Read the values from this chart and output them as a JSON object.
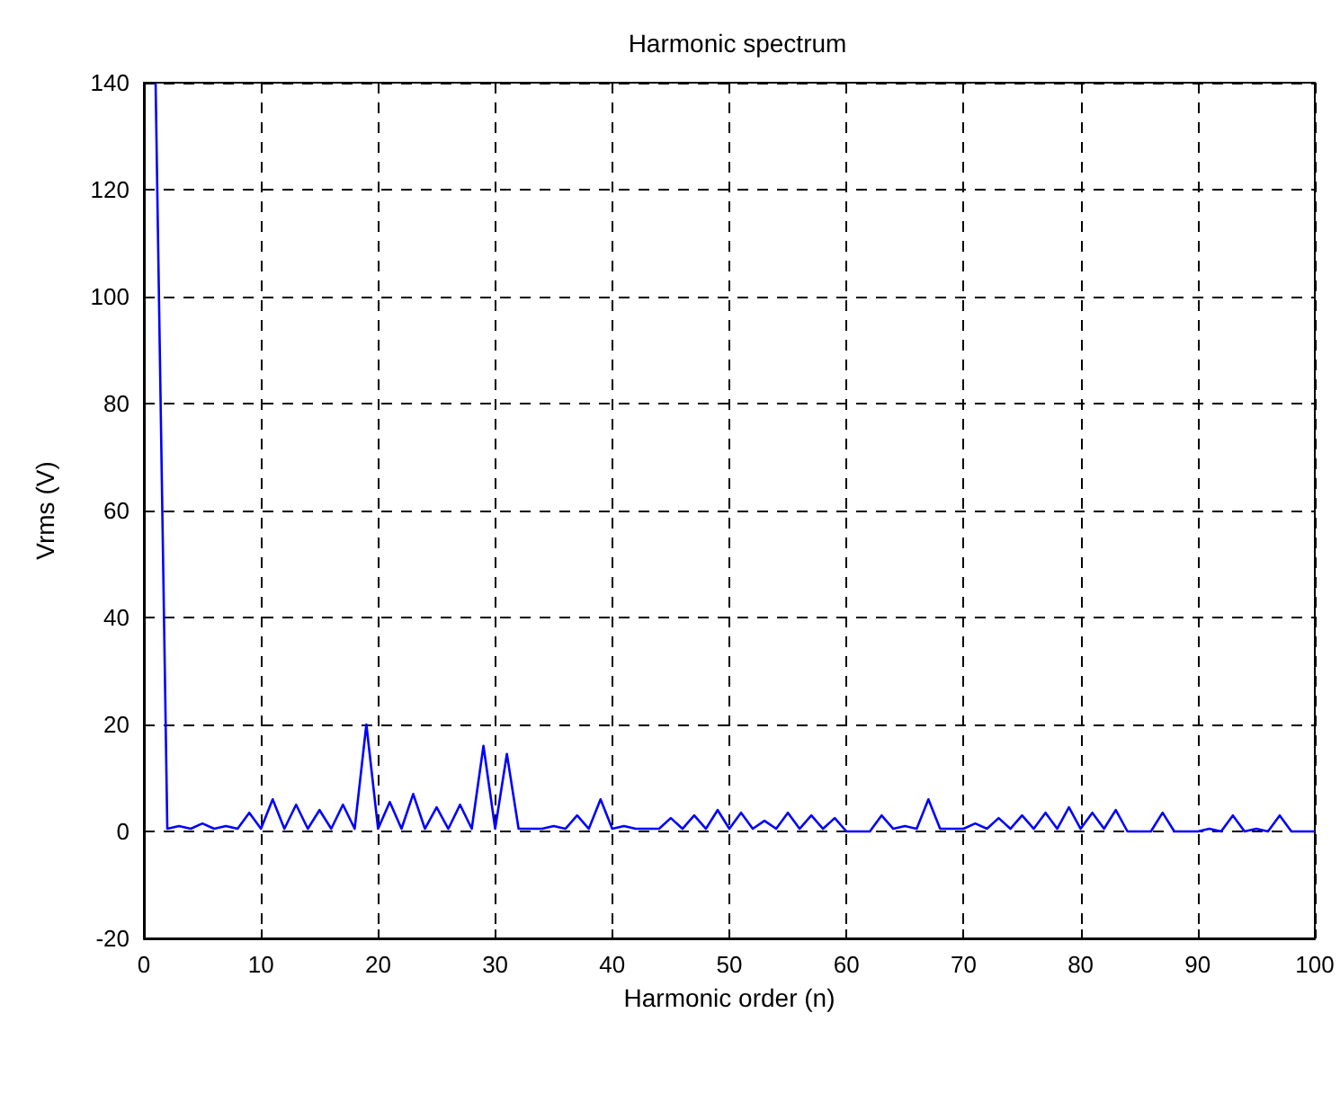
{
  "chart_data": {
    "type": "line",
    "title": "Harmonic spectrum",
    "xlabel": "Harmonic order (n)",
    "ylabel": "Vrms (V)",
    "x": [
      1,
      2,
      3,
      4,
      5,
      6,
      7,
      8,
      9,
      10,
      11,
      12,
      13,
      14,
      15,
      16,
      17,
      18,
      19,
      20,
      21,
      22,
      23,
      24,
      25,
      26,
      27,
      28,
      29,
      30,
      31,
      32,
      33,
      34,
      35,
      36,
      37,
      38,
      39,
      40,
      41,
      42,
      43,
      44,
      45,
      46,
      47,
      48,
      49,
      50,
      51,
      52,
      53,
      54,
      55,
      56,
      57,
      58,
      59,
      60,
      61,
      62,
      63,
      64,
      65,
      66,
      67,
      68,
      69,
      70,
      71,
      72,
      73,
      74,
      75,
      76,
      77,
      78,
      79,
      80,
      81,
      82,
      83,
      84,
      85,
      86,
      87,
      88,
      89,
      90,
      91,
      92,
      93,
      94,
      95,
      96,
      97,
      98,
      99,
      100
    ],
    "series": [
      {
        "color": "#0000ff",
        "values": [
          140,
          0.5,
          1,
          0.5,
          1.5,
          0.5,
          1,
          0.5,
          3.5,
          0.5,
          6,
          0.5,
          5,
          0.5,
          4,
          0.5,
          5,
          0.5,
          20,
          0.5,
          5.5,
          0.5,
          7,
          0.5,
          4.5,
          0.5,
          5,
          0.5,
          16,
          0.5,
          14.5,
          0.5,
          0.5,
          0.5,
          1,
          0.5,
          3,
          0.5,
          6,
          0.5,
          1,
          0.5,
          0.5,
          0.5,
          2.5,
          0.5,
          3,
          0.5,
          4,
          0.5,
          3.5,
          0.5,
          2,
          0.5,
          3.5,
          0.5,
          3,
          0.5,
          2.5,
          0,
          0,
          0,
          3,
          0.5,
          1,
          0.5,
          6,
          0.5,
          0.5,
          0.5,
          1.5,
          0.5,
          2.5,
          0.5,
          3,
          0.5,
          3.5,
          0.5,
          4.5,
          0.5,
          3.5,
          0.5,
          4,
          0,
          0,
          0,
          3.5,
          0,
          0,
          0,
          0.5,
          0,
          3,
          0,
          0.5,
          0,
          3,
          0,
          0,
          0
        ]
      }
    ],
    "xlim": [
      0,
      100
    ],
    "xticks": [
      0,
      10,
      20,
      30,
      40,
      50,
      60,
      70,
      80,
      90,
      100
    ],
    "ylim": [
      -20,
      140
    ],
    "yticks": [
      -20,
      0,
      20,
      40,
      60,
      80,
      100,
      120,
      140
    ],
    "grid": true,
    "marker": "none",
    "line_style": "solid"
  }
}
